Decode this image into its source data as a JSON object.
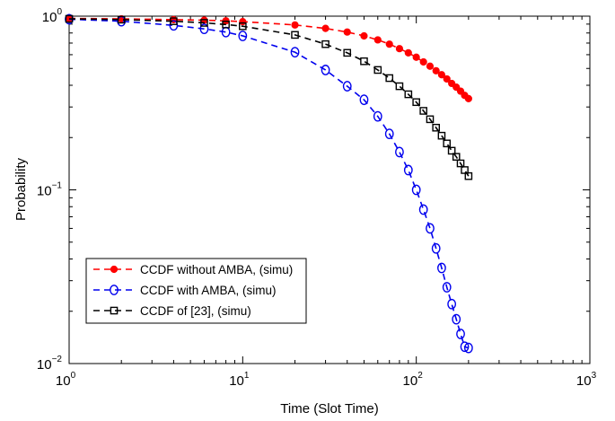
{
  "chart_data": {
    "type": "line",
    "xscale": "log",
    "yscale": "log",
    "xlim": [
      1,
      1000
    ],
    "ylim": [
      0.01,
      1
    ],
    "xlabel": "Time (Slot Time)",
    "ylabel": "Probability",
    "x_ticks": [
      {
        "value": 1,
        "base": "10",
        "exp": "0"
      },
      {
        "value": 10,
        "base": "10",
        "exp": "1"
      },
      {
        "value": 100,
        "base": "10",
        "exp": "2"
      },
      {
        "value": 1000,
        "base": "10",
        "exp": "3"
      }
    ],
    "y_ticks": [
      {
        "value": 0.01,
        "base": "10",
        "exp": "−2"
      },
      {
        "value": 0.1,
        "base": "10",
        "exp": "−1"
      },
      {
        "value": 1,
        "base": "10",
        "exp": "0"
      }
    ],
    "grid": false,
    "legend_position": "bottom-left",
    "series": [
      {
        "name": "CCDF without AMBA, (simu)",
        "color": "#ff0000",
        "marker": "filled-circle",
        "x": [
          1,
          2,
          4,
          6,
          8,
          10,
          20,
          30,
          40,
          50,
          60,
          70,
          80,
          90,
          100,
          110,
          120,
          130,
          140,
          150,
          160,
          170,
          180,
          190,
          200
        ],
        "y": [
          0.97,
          0.965,
          0.955,
          0.948,
          0.94,
          0.93,
          0.89,
          0.85,
          0.81,
          0.77,
          0.73,
          0.69,
          0.65,
          0.615,
          0.58,
          0.545,
          0.515,
          0.485,
          0.46,
          0.435,
          0.41,
          0.39,
          0.37,
          0.35,
          0.335
        ]
      },
      {
        "name": "CCDF with AMBA, (simu)",
        "color": "#0000ee",
        "marker": "open-circle",
        "x": [
          1,
          2,
          4,
          6,
          8,
          10,
          20,
          30,
          40,
          50,
          60,
          70,
          80,
          90,
          100,
          110,
          120,
          130,
          140,
          150,
          160,
          170,
          180,
          190,
          200
        ],
        "y": [
          0.96,
          0.935,
          0.885,
          0.845,
          0.81,
          0.77,
          0.62,
          0.49,
          0.395,
          0.33,
          0.265,
          0.21,
          0.165,
          0.13,
          0.1,
          0.077,
          0.06,
          0.046,
          0.0355,
          0.0275,
          0.022,
          0.018,
          0.0148,
          0.0125,
          0.0123
        ]
      },
      {
        "name": "CCDF of [23], (simu)",
        "color": "#000000",
        "marker": "open-square",
        "x": [
          1,
          2,
          4,
          6,
          8,
          10,
          20,
          30,
          40,
          50,
          60,
          70,
          80,
          90,
          100,
          110,
          120,
          130,
          140,
          150,
          160,
          170,
          180,
          190,
          200
        ],
        "y": [
          0.965,
          0.955,
          0.935,
          0.915,
          0.895,
          0.875,
          0.78,
          0.69,
          0.615,
          0.55,
          0.49,
          0.44,
          0.395,
          0.355,
          0.32,
          0.285,
          0.255,
          0.228,
          0.205,
          0.185,
          0.168,
          0.155,
          0.142,
          0.13,
          0.12
        ]
      }
    ]
  }
}
